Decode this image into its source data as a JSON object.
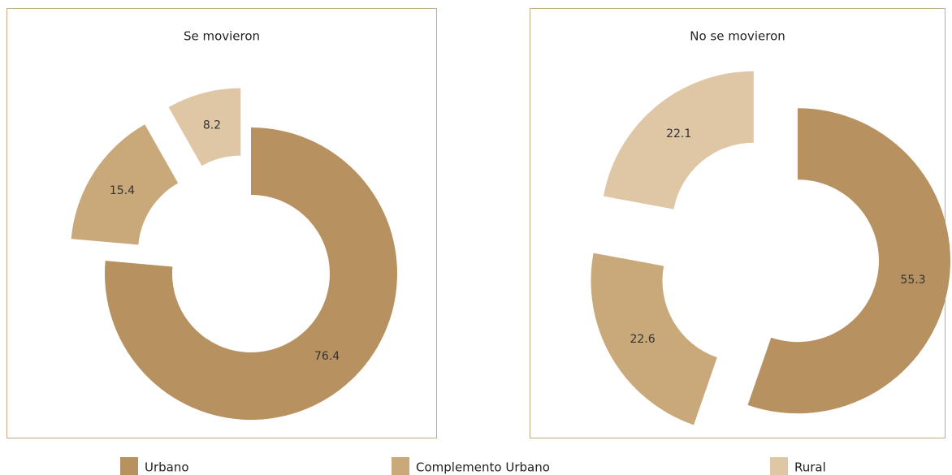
{
  "chart_data": [
    {
      "type": "donut",
      "title": "Se movieron",
      "categories": [
        "Urbano",
        "Complemento Urbano",
        "Rural"
      ],
      "values": [
        76.4,
        15.4,
        8.2
      ],
      "colors": [
        "#b89161",
        "#c9a87a",
        "#dfc6a5"
      ]
    },
    {
      "type": "donut",
      "title": "No se movieron",
      "categories": [
        "Urbano",
        "Complemento Urbano",
        "Rural"
      ],
      "values": [
        55.3,
        22.6,
        22.1
      ],
      "colors": [
        "#b89161",
        "#c9a87a",
        "#dfc6a5"
      ]
    }
  ]
}
